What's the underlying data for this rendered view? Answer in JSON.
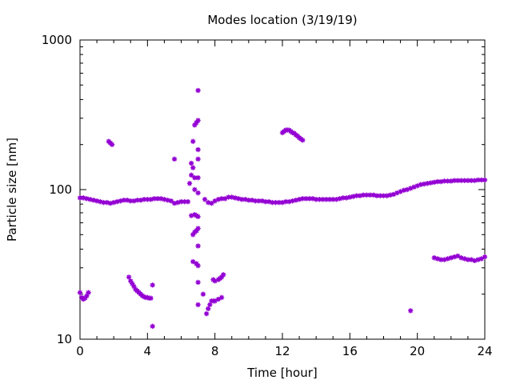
{
  "chart_data": {
    "type": "scatter",
    "title": "Modes location (3/19/19)",
    "xlabel": "Time [hour]",
    "ylabel": "Particle size [nm]",
    "xlim": [
      0,
      24
    ],
    "ylim": [
      10,
      1000
    ],
    "yscale": "log",
    "grid": false,
    "color": "#9400d3",
    "x_ticks": [
      0,
      4,
      8,
      12,
      16,
      20,
      24
    ],
    "x_tick_labels": [
      "0",
      "4",
      "8",
      "12",
      "16",
      "20",
      "24"
    ],
    "y_ticks": [
      10,
      100,
      1000
    ],
    "y_tick_labels": [
      "10",
      "100",
      "1000"
    ],
    "series": [
      {
        "values": [
          [
            0.0,
            88
          ],
          [
            0.2,
            88
          ],
          [
            0.4,
            87
          ],
          [
            0.6,
            86
          ],
          [
            0.8,
            85
          ],
          [
            1.0,
            84
          ],
          [
            1.2,
            83
          ],
          [
            1.4,
            82
          ],
          [
            1.6,
            82
          ],
          [
            1.8,
            81
          ],
          [
            2.0,
            82
          ],
          [
            2.2,
            83
          ],
          [
            2.4,
            84
          ],
          [
            2.6,
            85
          ],
          [
            2.8,
            85
          ],
          [
            3.0,
            84
          ],
          [
            3.2,
            84
          ],
          [
            3.4,
            85
          ],
          [
            3.6,
            85
          ],
          [
            3.8,
            86
          ],
          [
            4.0,
            86
          ],
          [
            4.2,
            86
          ],
          [
            4.4,
            87
          ],
          [
            4.6,
            87
          ],
          [
            4.8,
            87
          ],
          [
            5.0,
            86
          ],
          [
            5.2,
            85
          ],
          [
            5.4,
            84
          ],
          [
            5.6,
            81
          ],
          [
            5.8,
            82
          ],
          [
            6.0,
            83
          ],
          [
            6.2,
            83
          ],
          [
            6.4,
            83
          ],
          [
            7.4,
            86
          ],
          [
            7.6,
            82
          ],
          [
            7.8,
            81
          ],
          [
            8.0,
            84
          ],
          [
            8.2,
            86
          ],
          [
            8.4,
            87
          ],
          [
            8.6,
            87
          ],
          [
            8.8,
            89
          ],
          [
            9.0,
            89
          ],
          [
            9.2,
            88
          ],
          [
            9.4,
            87
          ],
          [
            9.6,
            86
          ],
          [
            9.8,
            86
          ],
          [
            10.0,
            85
          ],
          [
            10.2,
            85
          ],
          [
            10.4,
            84
          ],
          [
            10.6,
            84
          ],
          [
            10.8,
            84
          ],
          [
            11.0,
            83
          ],
          [
            11.2,
            83
          ],
          [
            11.4,
            82
          ],
          [
            11.6,
            82
          ],
          [
            11.8,
            82
          ],
          [
            12.0,
            82
          ],
          [
            12.2,
            83
          ],
          [
            12.4,
            83
          ],
          [
            12.6,
            84
          ],
          [
            12.8,
            85
          ],
          [
            13.0,
            86
          ],
          [
            13.2,
            87
          ],
          [
            13.4,
            87
          ],
          [
            13.6,
            87
          ],
          [
            13.8,
            87
          ],
          [
            14.0,
            86
          ],
          [
            14.2,
            86
          ],
          [
            14.4,
            86
          ],
          [
            14.6,
            86
          ],
          [
            14.8,
            86
          ],
          [
            15.0,
            86
          ],
          [
            15.2,
            86
          ],
          [
            15.4,
            87
          ],
          [
            15.6,
            88
          ],
          [
            15.8,
            88
          ],
          [
            16.0,
            89
          ],
          [
            16.2,
            90
          ],
          [
            16.4,
            91
          ],
          [
            16.6,
            91
          ],
          [
            16.8,
            92
          ],
          [
            17.0,
            92
          ],
          [
            17.2,
            92
          ],
          [
            17.4,
            92
          ],
          [
            17.6,
            91
          ],
          [
            17.8,
            91
          ],
          [
            18.0,
            91
          ],
          [
            18.2,
            91
          ],
          [
            18.4,
            92
          ],
          [
            18.6,
            93
          ],
          [
            18.8,
            95
          ],
          [
            19.0,
            97
          ],
          [
            19.2,
            99
          ],
          [
            19.4,
            100
          ],
          [
            19.6,
            102
          ],
          [
            19.8,
            104
          ],
          [
            20.0,
            106
          ],
          [
            20.2,
            108
          ],
          [
            20.4,
            109
          ],
          [
            20.6,
            110
          ],
          [
            20.8,
            111
          ],
          [
            21.0,
            112
          ],
          [
            21.2,
            113
          ],
          [
            21.4,
            113
          ],
          [
            21.6,
            114
          ],
          [
            21.8,
            114
          ],
          [
            22.0,
            114
          ],
          [
            22.2,
            115
          ],
          [
            22.4,
            115
          ],
          [
            22.6,
            115
          ],
          [
            22.8,
            115
          ],
          [
            23.0,
            115
          ],
          [
            23.2,
            115
          ],
          [
            23.4,
            115
          ],
          [
            23.6,
            116
          ],
          [
            23.8,
            116
          ],
          [
            24.0,
            116
          ],
          [
            0.0,
            20.5
          ],
          [
            0.1,
            19.0
          ],
          [
            0.2,
            18.5
          ],
          [
            0.3,
            18.8
          ],
          [
            0.4,
            19.5
          ],
          [
            0.5,
            20.5
          ],
          [
            1.7,
            210
          ],
          [
            1.8,
            205
          ],
          [
            1.9,
            200
          ],
          [
            2.9,
            26
          ],
          [
            3.0,
            24.5
          ],
          [
            3.1,
            23.5
          ],
          [
            3.2,
            22.5
          ],
          [
            3.3,
            21.5
          ],
          [
            3.4,
            21
          ],
          [
            3.5,
            20.5
          ],
          [
            3.6,
            20
          ],
          [
            3.7,
            19.5
          ],
          [
            3.8,
            19.2
          ],
          [
            3.9,
            19
          ],
          [
            4.0,
            19
          ],
          [
            4.1,
            18.8
          ],
          [
            4.2,
            18.8
          ],
          [
            4.3,
            23
          ],
          [
            4.3,
            12.2
          ],
          [
            5.6,
            160
          ],
          [
            6.5,
            110
          ],
          [
            6.6,
            125
          ],
          [
            6.6,
            150
          ],
          [
            6.7,
            210
          ],
          [
            6.7,
            140
          ],
          [
            6.6,
            67
          ],
          [
            6.7,
            50
          ],
          [
            6.7,
            33
          ],
          [
            6.8,
            270
          ],
          [
            6.8,
            120
          ],
          [
            6.8,
            100
          ],
          [
            6.8,
            68
          ],
          [
            6.8,
            52
          ],
          [
            6.9,
            280
          ],
          [
            6.9,
            67
          ],
          [
            6.9,
            53
          ],
          [
            6.9,
            32
          ],
          [
            7.0,
            290
          ],
          [
            7.0,
            185
          ],
          [
            7.0,
            160
          ],
          [
            7.0,
            120
          ],
          [
            7.0,
            95
          ],
          [
            7.0,
            66
          ],
          [
            7.0,
            55
          ],
          [
            7.0,
            42
          ],
          [
            7.0,
            24
          ],
          [
            7.0,
            17
          ],
          [
            7.0,
            460
          ],
          [
            7.0,
            31
          ],
          [
            7.3,
            20
          ],
          [
            7.5,
            14.8
          ],
          [
            7.6,
            16
          ],
          [
            7.7,
            17
          ],
          [
            7.8,
            18
          ],
          [
            7.9,
            18
          ],
          [
            8.0,
            18
          ],
          [
            8.2,
            18.5
          ],
          [
            8.4,
            19
          ],
          [
            7.9,
            25
          ],
          [
            8.0,
            24.5
          ],
          [
            8.2,
            25
          ],
          [
            8.3,
            25.5
          ],
          [
            8.4,
            26
          ],
          [
            8.5,
            27
          ],
          [
            12.0,
            240
          ],
          [
            12.1,
            245
          ],
          [
            12.2,
            250
          ],
          [
            12.3,
            250
          ],
          [
            12.4,
            250
          ],
          [
            12.5,
            245
          ],
          [
            12.6,
            240
          ],
          [
            12.7,
            238
          ],
          [
            12.8,
            232
          ],
          [
            12.9,
            228
          ],
          [
            13.0,
            222
          ],
          [
            13.1,
            218
          ],
          [
            13.2,
            214
          ],
          [
            19.6,
            15.5
          ],
          [
            21.0,
            35
          ],
          [
            21.2,
            34.5
          ],
          [
            21.4,
            34
          ],
          [
            21.6,
            34
          ],
          [
            21.8,
            34.5
          ],
          [
            22.0,
            35
          ],
          [
            22.2,
            35.5
          ],
          [
            22.4,
            36
          ],
          [
            22.6,
            35
          ],
          [
            22.8,
            34.5
          ],
          [
            23.0,
            34
          ],
          [
            23.2,
            34
          ],
          [
            23.4,
            33.5
          ],
          [
            23.6,
            34
          ],
          [
            23.8,
            34.5
          ],
          [
            24.0,
            35.5
          ]
        ]
      }
    ]
  }
}
